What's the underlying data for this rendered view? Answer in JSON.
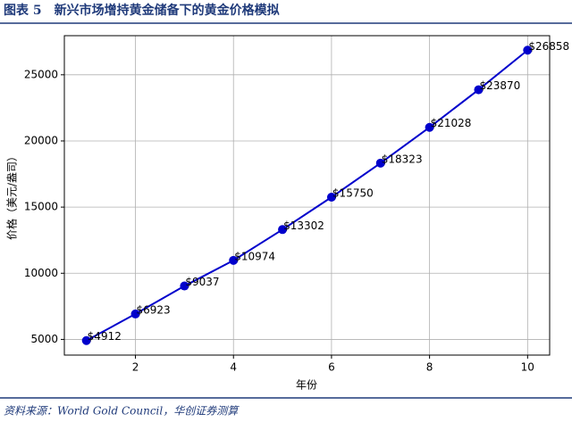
{
  "chart_data": {
    "type": "line",
    "title": "图表 5　新兴市场增持黄金储备下的黄金价格模拟",
    "source": "资料来源：World Gold Council，华创证券测算",
    "x_label": "年份",
    "y_label": "价格（美元/盎司）",
    "x": [
      1,
      2,
      3,
      4,
      5,
      6,
      7,
      8,
      9,
      10
    ],
    "series": [
      {
        "color": "#0000cc",
        "values": [
          4912,
          6923,
          9037,
          10974,
          13302,
          15750,
          18323,
          21028,
          23870,
          26858
        ],
        "value_labels": [
          "$4912",
          "$6923",
          "$9037",
          "$10974",
          "$13302",
          "$15750",
          "$18323",
          "$21028",
          "$23870",
          "$26858"
        ]
      }
    ],
    "xlim": [
      0.55,
      10.45
    ],
    "xticks": [
      2,
      4,
      6,
      8,
      10
    ],
    "ylim": [
      3815,
      27955
    ],
    "yticks": [
      5000,
      10000,
      15000,
      20000,
      25000
    ],
    "grid": true
  }
}
